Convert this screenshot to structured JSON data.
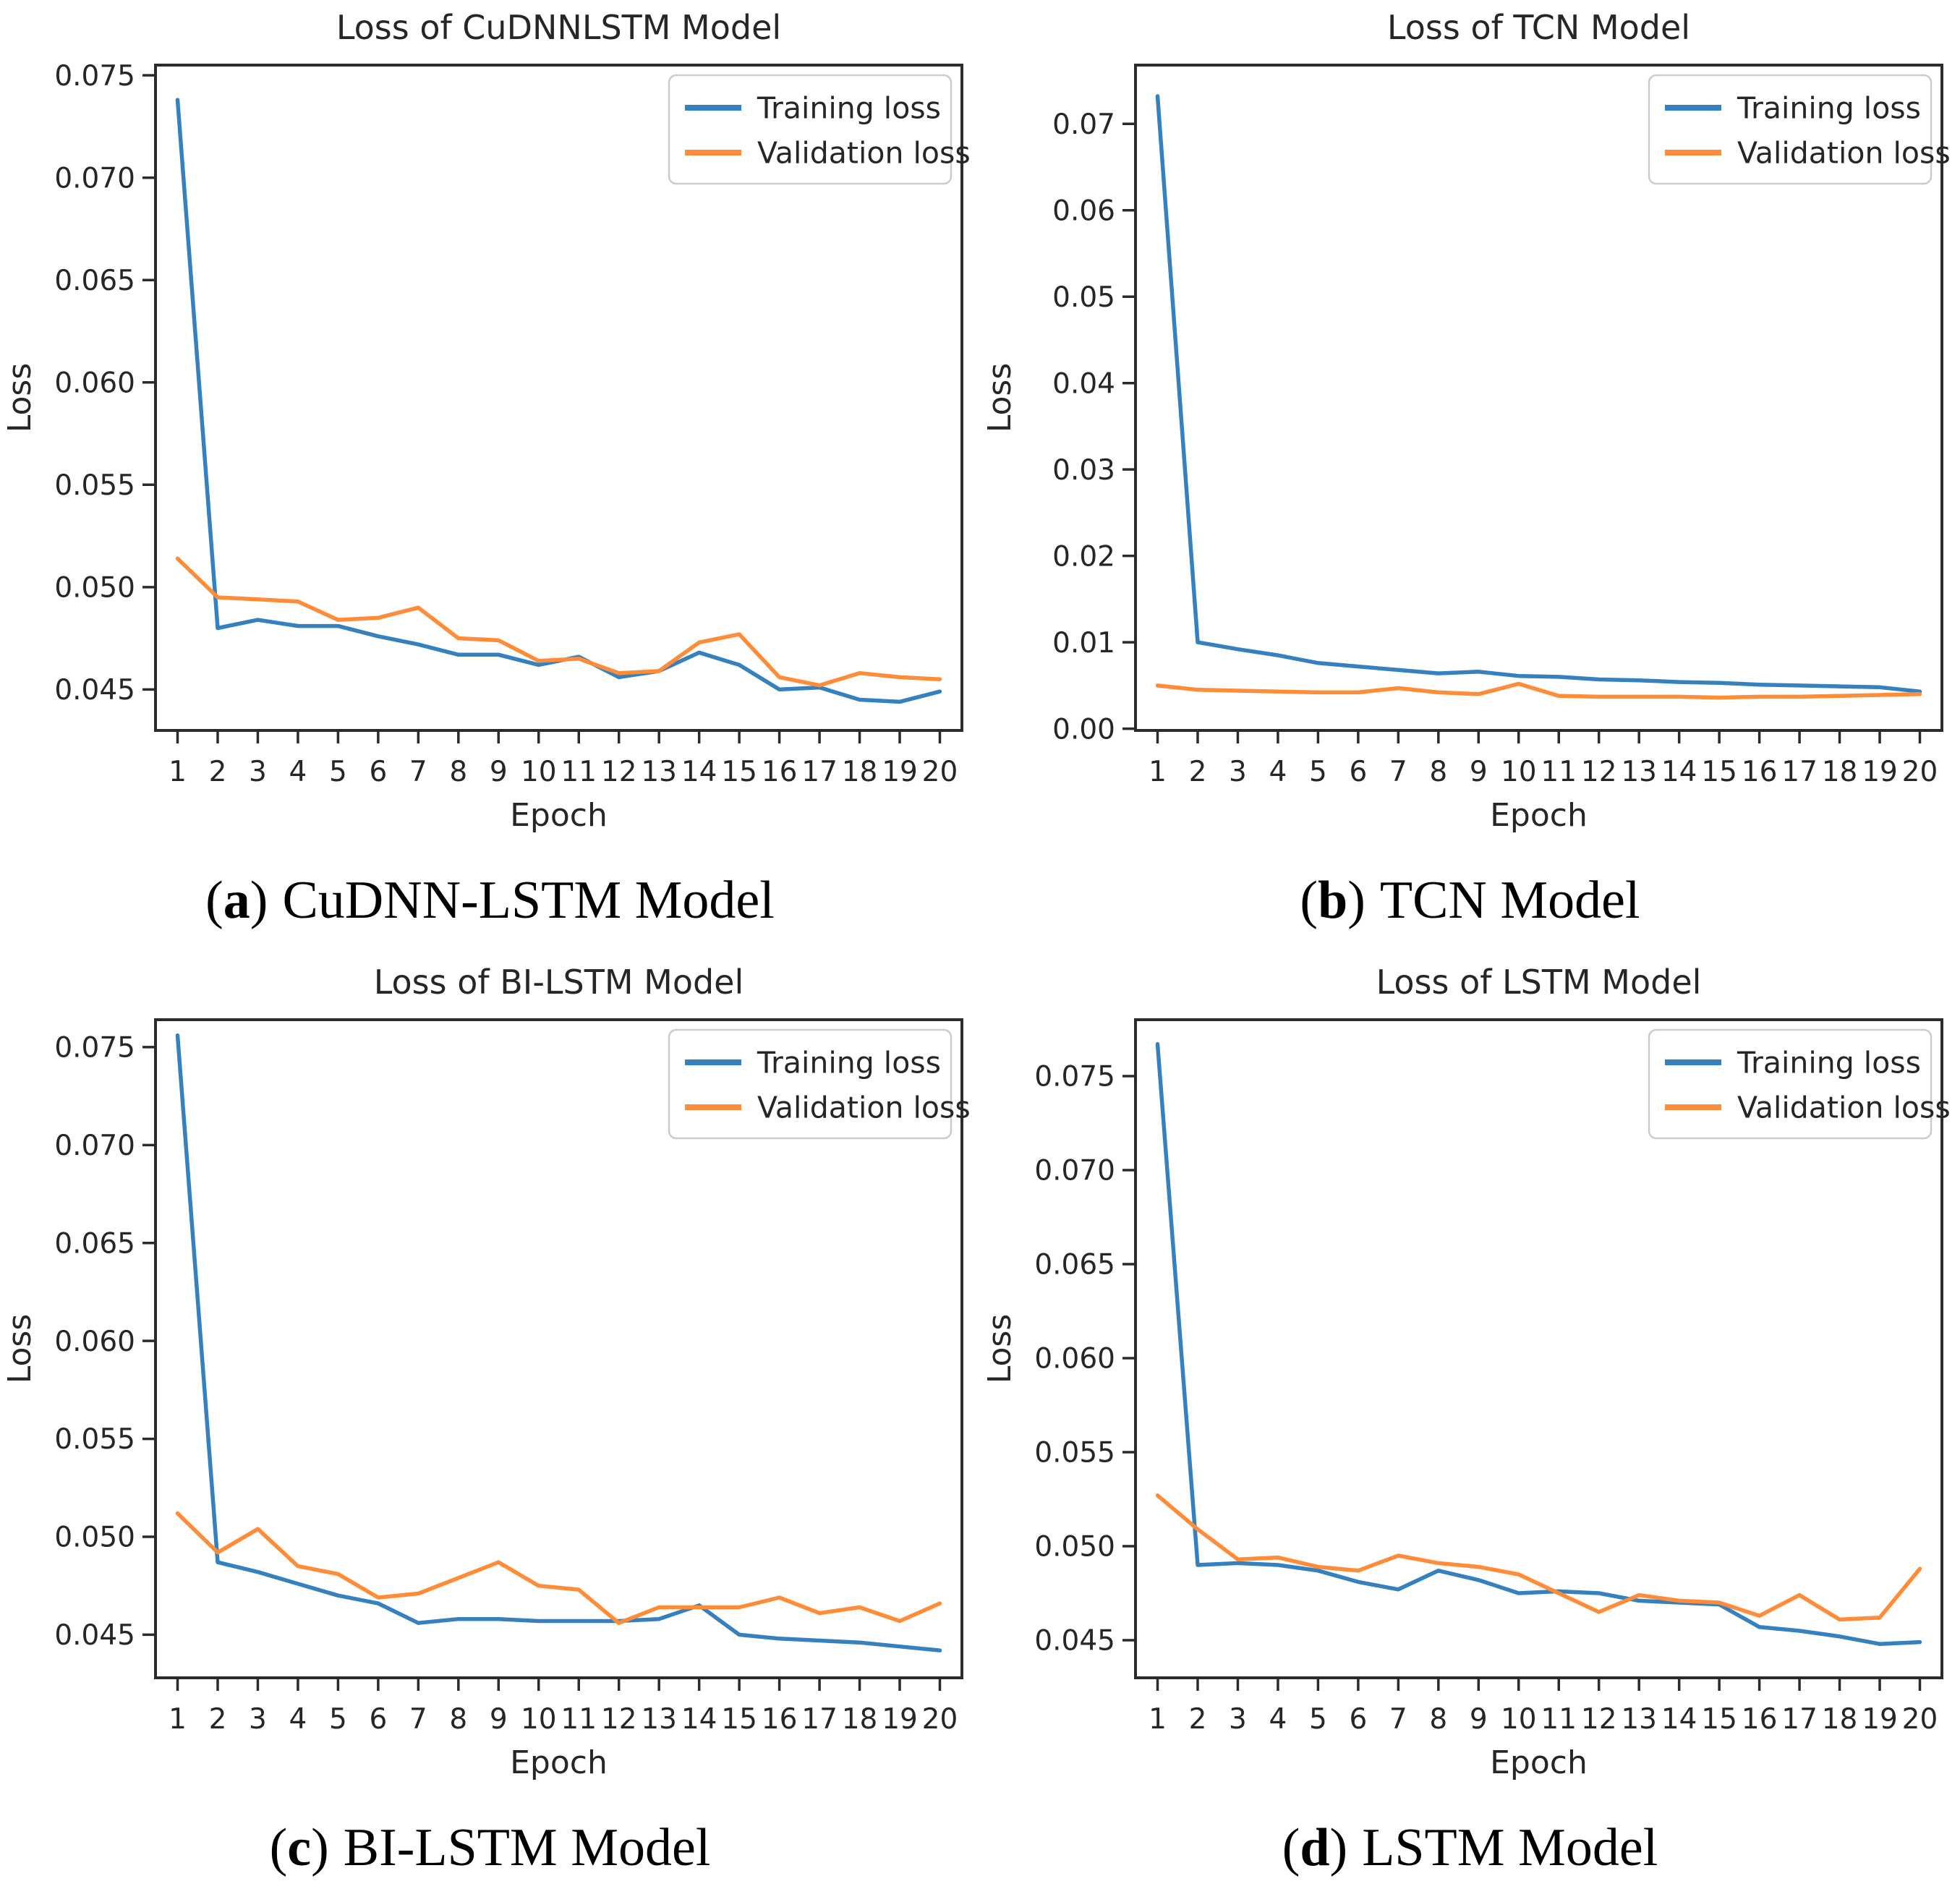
{
  "figure": {
    "xlabel": "Epoch",
    "ylabel": "Loss",
    "legend": {
      "training": "Training loss",
      "validation": "Validation loss"
    },
    "colors": {
      "training": "#3581bf",
      "validation": "#ff8c38",
      "text": "#262626",
      "spine": "#2b2b2b",
      "legend_border": "#cccccc",
      "background": "#ffffff"
    }
  },
  "chart_data": [
    {
      "id": "cudnnlstm",
      "type": "line",
      "title": "Loss of CuDNNLSTM Model",
      "xlabel": "Epoch",
      "ylabel": "Loss",
      "x": [
        1,
        2,
        3,
        4,
        5,
        6,
        7,
        8,
        9,
        10,
        11,
        12,
        13,
        14,
        15,
        16,
        17,
        18,
        19,
        20
      ],
      "yticks": [
        0.045,
        0.05,
        0.055,
        0.06,
        0.065,
        0.07,
        0.075
      ],
      "ytick_decimals": 3,
      "ylim": [
        0.043,
        0.0755
      ],
      "grid": false,
      "legend_position": "upper right",
      "series": [
        {
          "name": "Training loss",
          "color": "#3581bf",
          "values": [
            0.0738,
            0.048,
            0.0484,
            0.0481,
            0.0481,
            0.0476,
            0.0472,
            0.0467,
            0.0467,
            0.0462,
            0.0466,
            0.0456,
            0.0459,
            0.0468,
            0.0462,
            0.045,
            0.0451,
            0.0445,
            0.0444,
            0.0449
          ]
        },
        {
          "name": "Validation loss",
          "color": "#ff8c38",
          "values": [
            0.0514,
            0.0495,
            0.0494,
            0.0493,
            0.0484,
            0.0485,
            0.049,
            0.0475,
            0.0474,
            0.0464,
            0.0465,
            0.0458,
            0.0459,
            0.0473,
            0.0477,
            0.0456,
            0.0452,
            0.0458,
            0.0456,
            0.0455
          ]
        }
      ],
      "caption": {
        "open": "(",
        "letter": "a",
        "close": ")",
        "label": "CuDNN-LSTM Model"
      }
    },
    {
      "id": "tcn",
      "type": "line",
      "title": "Loss of TCN Model",
      "xlabel": "Epoch",
      "ylabel": "Loss",
      "x": [
        1,
        2,
        3,
        4,
        5,
        6,
        7,
        8,
        9,
        10,
        11,
        12,
        13,
        14,
        15,
        16,
        17,
        18,
        19,
        20
      ],
      "yticks": [
        0.0,
        0.01,
        0.02,
        0.03,
        0.04,
        0.05,
        0.06,
        0.07
      ],
      "ytick_decimals": 2,
      "ylim": [
        -0.0002,
        0.0768
      ],
      "grid": false,
      "legend_position": "upper right",
      "series": [
        {
          "name": "Training loss",
          "color": "#3581bf",
          "values": [
            0.0732,
            0.01,
            0.0092,
            0.0085,
            0.0076,
            0.0072,
            0.0068,
            0.0064,
            0.0066,
            0.0061,
            0.006,
            0.0057,
            0.0056,
            0.0054,
            0.0053,
            0.0051,
            0.005,
            0.0049,
            0.0048,
            0.0043
          ]
        },
        {
          "name": "Validation loss",
          "color": "#ff8c38",
          "values": [
            0.005,
            0.0045,
            0.0044,
            0.0043,
            0.0042,
            0.0042,
            0.0047,
            0.0042,
            0.004,
            0.0052,
            0.0038,
            0.0037,
            0.0037,
            0.0037,
            0.0036,
            0.0037,
            0.0037,
            0.0038,
            0.0039,
            0.004
          ]
        }
      ],
      "caption": {
        "open": "(",
        "letter": "b",
        "close": ")",
        "label": "TCN Model"
      }
    },
    {
      "id": "bilstm",
      "type": "line",
      "title": "Loss of BI-LSTM Model",
      "xlabel": "Epoch",
      "ylabel": "Loss",
      "x": [
        1,
        2,
        3,
        4,
        5,
        6,
        7,
        8,
        9,
        10,
        11,
        12,
        13,
        14,
        15,
        16,
        17,
        18,
        19,
        20
      ],
      "yticks": [
        0.045,
        0.05,
        0.055,
        0.06,
        0.065,
        0.07,
        0.075
      ],
      "ytick_decimals": 3,
      "ylim": [
        0.0428,
        0.0764
      ],
      "grid": false,
      "legend_position": "upper right",
      "series": [
        {
          "name": "Training loss",
          "color": "#3581bf",
          "values": [
            0.0756,
            0.0487,
            0.0482,
            0.0476,
            0.047,
            0.0466,
            0.0456,
            0.0458,
            0.0458,
            0.0457,
            0.0457,
            0.0457,
            0.0458,
            0.0465,
            0.045,
            0.0448,
            0.0447,
            0.0446,
            0.0444,
            0.0442
          ]
        },
        {
          "name": "Validation loss",
          "color": "#ff8c38",
          "values": [
            0.0512,
            0.0492,
            0.0504,
            0.0485,
            0.0481,
            0.0469,
            0.0471,
            0.0479,
            0.0487,
            0.0475,
            0.0473,
            0.0456,
            0.0464,
            0.0464,
            0.0464,
            0.0469,
            0.0461,
            0.0464,
            0.0457,
            0.0466
          ]
        }
      ],
      "caption": {
        "open": "(",
        "letter": "c",
        "close": ")",
        "label": "BI-LSTM Model"
      }
    },
    {
      "id": "lstm",
      "type": "line",
      "title": "Loss of LSTM Model",
      "xlabel": "Epoch",
      "ylabel": "Loss",
      "x": [
        1,
        2,
        3,
        4,
        5,
        6,
        7,
        8,
        9,
        10,
        11,
        12,
        13,
        14,
        15,
        16,
        17,
        18,
        19,
        20
      ],
      "yticks": [
        0.045,
        0.05,
        0.055,
        0.06,
        0.065,
        0.07,
        0.075
      ],
      "ytick_decimals": 3,
      "ylim": [
        0.043,
        0.078
      ],
      "grid": false,
      "legend_position": "upper right",
      "series": [
        {
          "name": "Training loss",
          "color": "#3581bf",
          "values": [
            0.0767,
            0.049,
            0.0491,
            0.049,
            0.0487,
            0.0481,
            0.0477,
            0.0487,
            0.0482,
            0.0475,
            0.0476,
            0.0475,
            0.0471,
            0.047,
            0.0469,
            0.0457,
            0.0455,
            0.0452,
            0.0448,
            0.0449
          ]
        },
        {
          "name": "Validation loss",
          "color": "#ff8c38",
          "values": [
            0.0527,
            0.0509,
            0.0493,
            0.0494,
            0.0489,
            0.0487,
            0.0495,
            0.0491,
            0.0489,
            0.0485,
            0.0475,
            0.0465,
            0.0474,
            0.0471,
            0.047,
            0.0463,
            0.0474,
            0.0461,
            0.0462,
            0.0488
          ]
        }
      ],
      "caption": {
        "open": "(",
        "letter": "d",
        "close": ")",
        "label": "LSTM Model"
      }
    }
  ]
}
